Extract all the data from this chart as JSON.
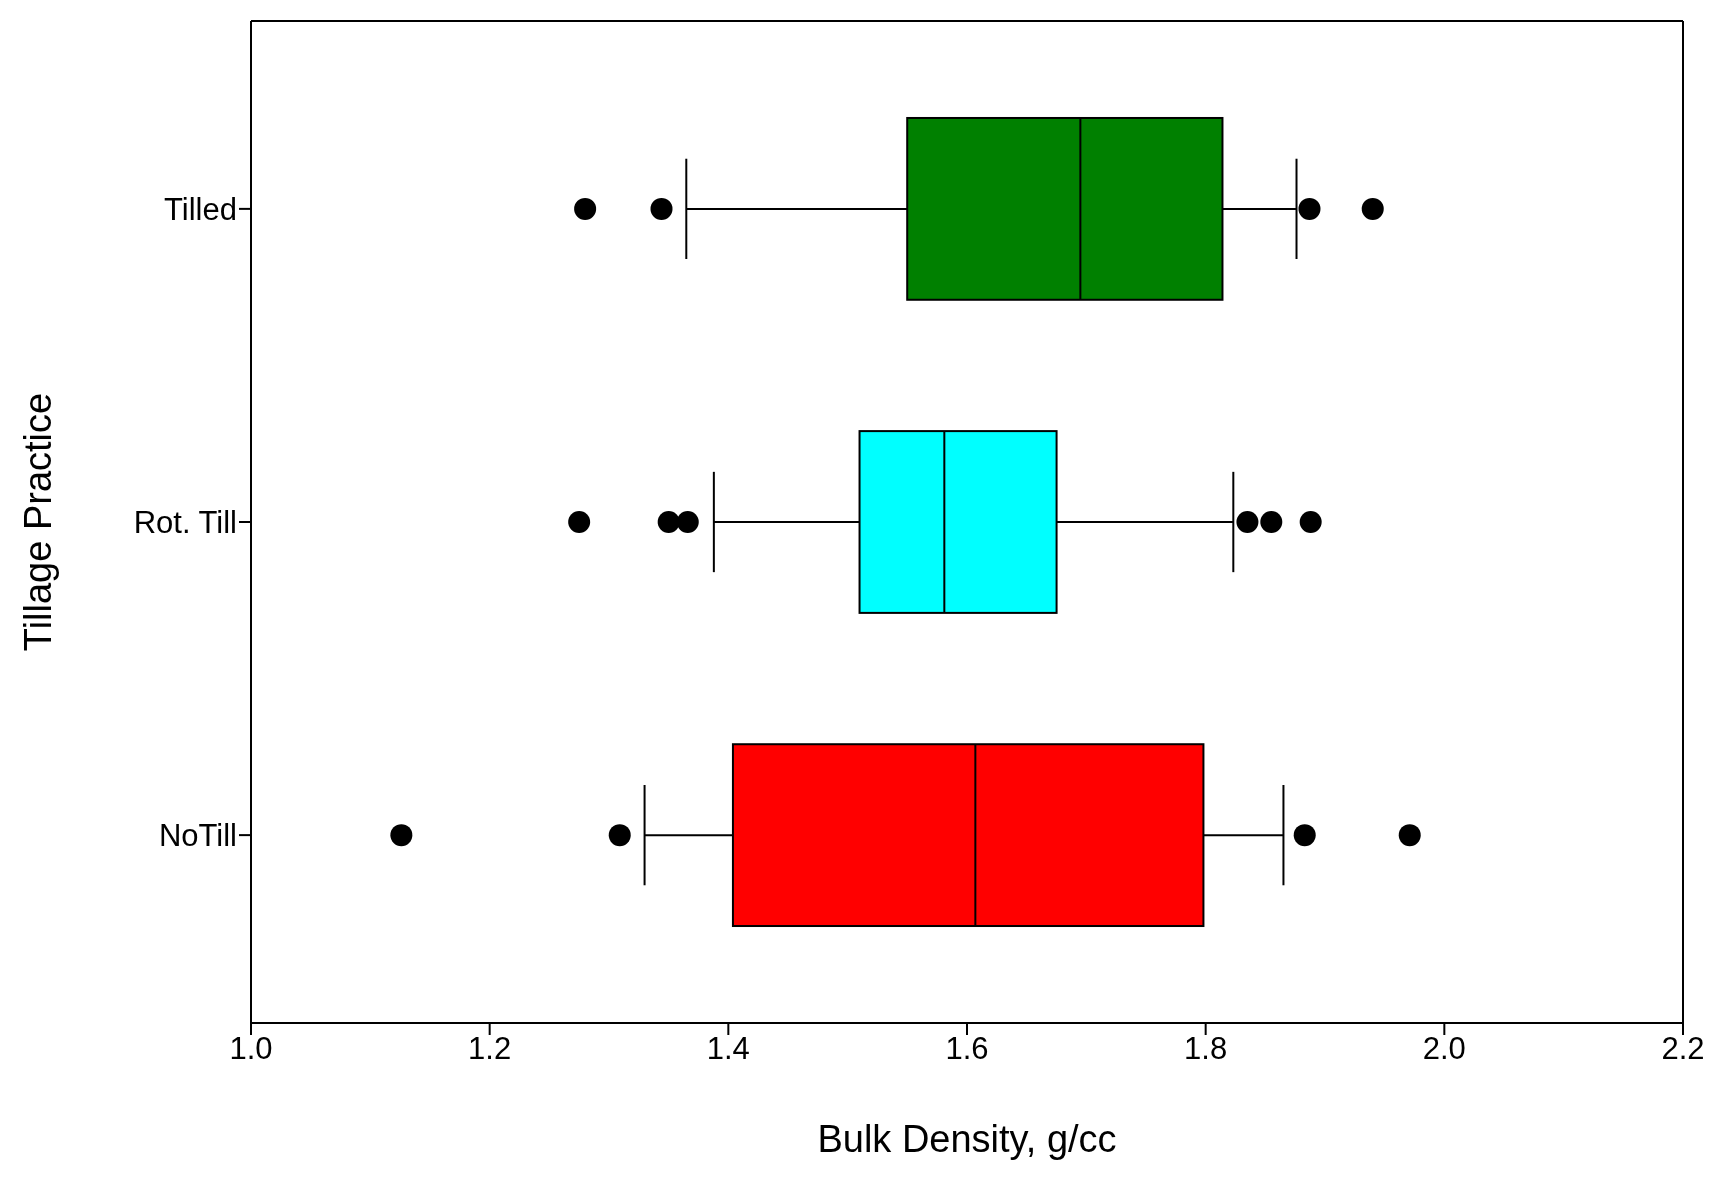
{
  "chart_data": {
    "type": "box",
    "orientation": "horizontal",
    "categories": [
      "Tilled",
      "Rot. Till",
      "NoTill"
    ],
    "xlabel": "Bulk Density, g/cc",
    "ylabel": "Tillage Practice",
    "xlim": [
      1.0,
      2.2
    ],
    "xticks": [
      {
        "value": 1.0,
        "label": "1.0"
      },
      {
        "value": 1.2,
        "label": "1.2"
      },
      {
        "value": 1.4,
        "label": "1.4"
      },
      {
        "value": 1.6,
        "label": "1.6"
      },
      {
        "value": 1.8,
        "label": "1.8"
      },
      {
        "value": 2.0,
        "label": "2.0"
      },
      {
        "value": 2.2,
        "label": "2.2"
      }
    ],
    "colors": [
      "#008000",
      "#00ffff",
      "#ff0000"
    ],
    "marker": "circle",
    "boxes": [
      {
        "low": 1.365,
        "q1": 1.55,
        "median": 1.695,
        "q3": 1.814,
        "high": 1.876,
        "outliers": [
          1.28,
          1.344,
          1.887,
          1.94
        ]
      },
      {
        "low": 1.388,
        "q1": 1.51,
        "median": 1.581,
        "q3": 1.675,
        "high": 1.823,
        "outliers": [
          1.275,
          1.35,
          1.366,
          1.835,
          1.855,
          1.888
        ]
      },
      {
        "low": 1.33,
        "q1": 1.404,
        "median": 1.607,
        "q3": 1.798,
        "high": 1.865,
        "outliers": [
          1.126,
          1.309,
          1.883,
          1.971
        ]
      }
    ]
  }
}
